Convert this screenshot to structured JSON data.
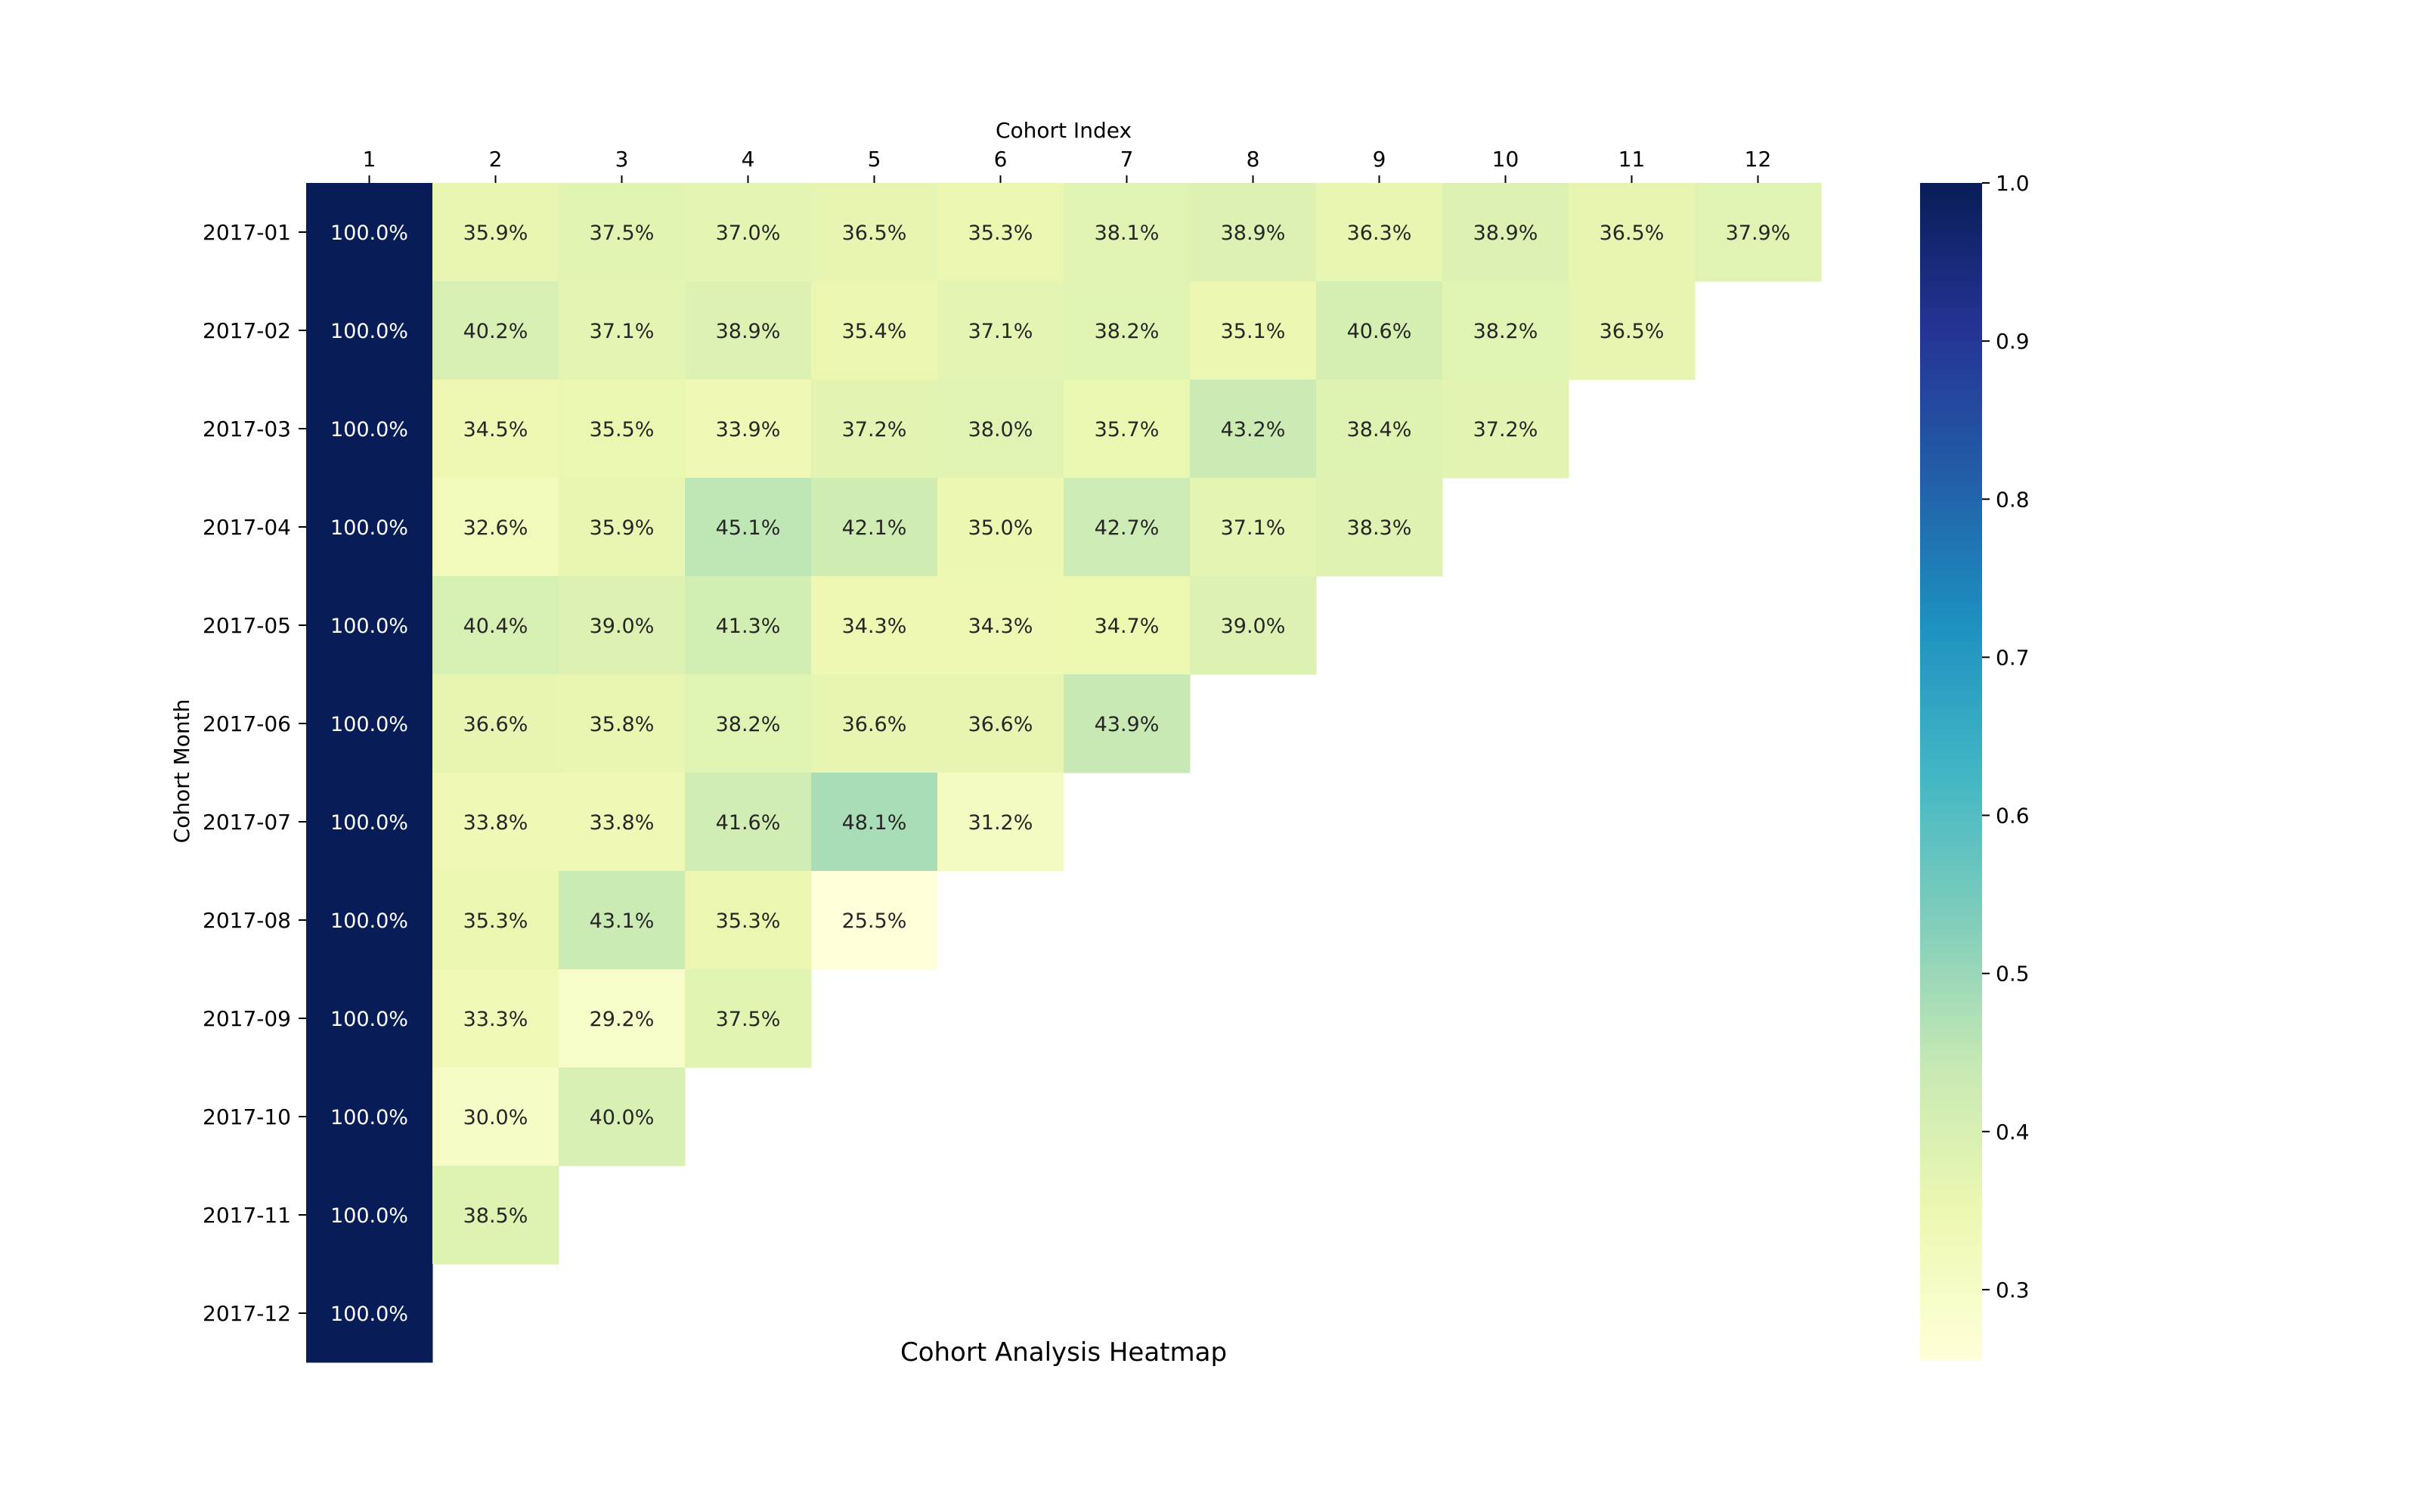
{
  "chart_data": {
    "type": "heatmap",
    "title": "Cohort Analysis Heatmap",
    "xlabel": "Cohort Index",
    "ylabel": "Cohort Month",
    "x_labels": [
      "1",
      "2",
      "3",
      "4",
      "5",
      "6",
      "7",
      "8",
      "9",
      "10",
      "11",
      "12"
    ],
    "y_labels": [
      "2017-01",
      "2017-02",
      "2017-03",
      "2017-04",
      "2017-05",
      "2017-06",
      "2017-07",
      "2017-08",
      "2017-09",
      "2017-10",
      "2017-11",
      "2017-12"
    ],
    "values": [
      [
        1.0,
        0.359,
        0.375,
        0.37,
        0.365,
        0.353,
        0.381,
        0.389,
        0.363,
        0.389,
        0.365,
        0.379
      ],
      [
        1.0,
        0.402,
        0.371,
        0.389,
        0.354,
        0.371,
        0.382,
        0.351,
        0.406,
        0.382,
        0.365
      ],
      [
        1.0,
        0.345,
        0.355,
        0.339,
        0.372,
        0.38,
        0.357,
        0.432,
        0.384,
        0.372
      ],
      [
        1.0,
        0.326,
        0.359,
        0.451,
        0.421,
        0.35,
        0.427,
        0.371,
        0.383
      ],
      [
        1.0,
        0.404,
        0.39,
        0.413,
        0.343,
        0.343,
        0.347,
        0.39
      ],
      [
        1.0,
        0.366,
        0.358,
        0.382,
        0.366,
        0.366,
        0.439
      ],
      [
        1.0,
        0.338,
        0.338,
        0.416,
        0.481,
        0.312
      ],
      [
        1.0,
        0.353,
        0.431,
        0.353,
        0.255
      ],
      [
        1.0,
        0.333,
        0.292,
        0.375
      ],
      [
        1.0,
        0.3,
        0.4
      ],
      [
        1.0,
        0.385
      ],
      [
        1.0
      ]
    ],
    "annotations": [
      [
        "100.0%",
        "35.9%",
        "37.5%",
        "37.0%",
        "36.5%",
        "35.3%",
        "38.1%",
        "38.9%",
        "36.3%",
        "38.9%",
        "36.5%",
        "37.9%"
      ],
      [
        "100.0%",
        "40.2%",
        "37.1%",
        "38.9%",
        "35.4%",
        "37.1%",
        "38.2%",
        "35.1%",
        "40.6%",
        "38.2%",
        "36.5%"
      ],
      [
        "100.0%",
        "34.5%",
        "35.5%",
        "33.9%",
        "37.2%",
        "38.0%",
        "35.7%",
        "43.2%",
        "38.4%",
        "37.2%"
      ],
      [
        "100.0%",
        "32.6%",
        "35.9%",
        "45.1%",
        "42.1%",
        "35.0%",
        "42.7%",
        "37.1%",
        "38.3%"
      ],
      [
        "100.0%",
        "40.4%",
        "39.0%",
        "41.3%",
        "34.3%",
        "34.3%",
        "34.7%",
        "39.0%"
      ],
      [
        "100.0%",
        "36.6%",
        "35.8%",
        "38.2%",
        "36.6%",
        "36.6%",
        "43.9%"
      ],
      [
        "100.0%",
        "33.8%",
        "33.8%",
        "41.6%",
        "48.1%",
        "31.2%"
      ],
      [
        "100.0%",
        "35.3%",
        "43.1%",
        "35.3%",
        "25.5%"
      ],
      [
        "100.0%",
        "33.3%",
        "29.2%",
        "37.5%"
      ],
      [
        "100.0%",
        "30.0%",
        "40.0%"
      ],
      [
        "100.0%",
        "38.5%"
      ],
      [
        "100.0%"
      ]
    ],
    "color_scale": {
      "name": "YlGnBu",
      "vmin": 0.255,
      "vmax": 1.0,
      "stops": [
        "#ffffd9",
        "#edf8b1",
        "#c7e9b4",
        "#7fcdbb",
        "#41b6c4",
        "#1d91c0",
        "#225ea8",
        "#253494",
        "#081d58"
      ]
    },
    "colorbar": {
      "ticks": [
        0.3,
        0.4,
        0.5,
        0.6,
        0.7,
        0.8,
        0.9,
        1.0
      ],
      "tick_labels": [
        "0.3",
        "0.4",
        "0.5",
        "0.6",
        "0.7",
        "0.8",
        "0.9",
        "1.0"
      ]
    }
  }
}
